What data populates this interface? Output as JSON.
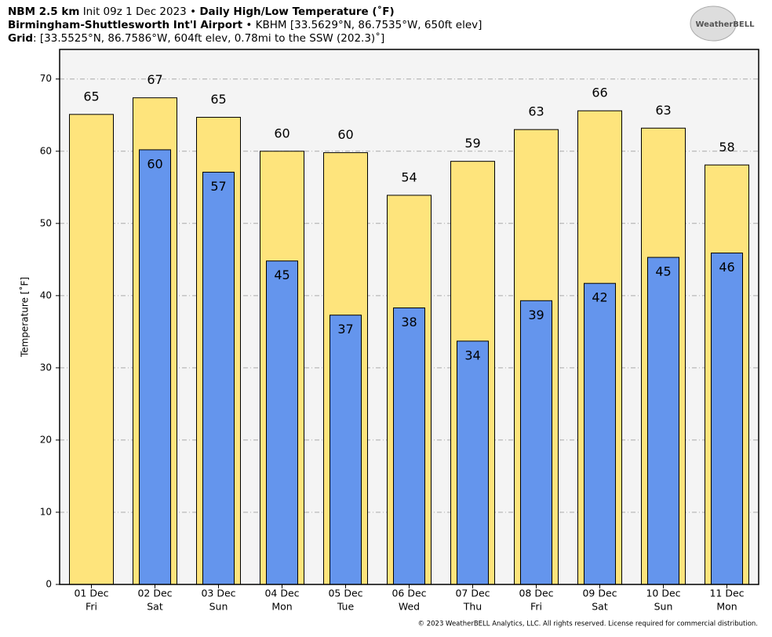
{
  "header": {
    "model": "NBM 2.5 km",
    "init": "Init 09z 1 Dec 2023",
    "product": "Daily High/Low Temperature (˚F)",
    "station": "Birmingham-Shuttlesworth Int'l Airport",
    "station_info": "KBHM [33.5629°N, 86.7535°W, 650ft elev]",
    "grid_label": "Grid",
    "grid_info": ": [33.5525°N, 86.7586°W, 604ft elev, 0.78mi to the SSW (202.3)˚]",
    "logo": "WeatherBELL"
  },
  "footer": "© 2023 WeatherBELL Analytics, LLC. All rights reserved. License required for commercial distribution.",
  "chart_data": {
    "type": "bar",
    "y_label": "Temperature [˚F]",
    "categories": [
      "01 Dec",
      "02 Dec",
      "03 Dec",
      "04 Dec",
      "05 Dec",
      "06 Dec",
      "07 Dec",
      "08 Dec",
      "09 Dec",
      "10 Dec",
      "11 Dec"
    ],
    "days": [
      "Fri",
      "Sat",
      "Sun",
      "Mon",
      "Tue",
      "Wed",
      "Thu",
      "Fri",
      "Sat",
      "Sun",
      "Mon"
    ],
    "series": [
      {
        "name": "High",
        "color": "#fee47c",
        "values": [
          65.1,
          67.4,
          64.7,
          60.0,
          59.8,
          53.9,
          58.6,
          63.0,
          65.6,
          63.2,
          58.1
        ],
        "value_labels": [
          "65",
          "67",
          "65",
          "60",
          "60",
          "54",
          "59",
          "63",
          "66",
          "63",
          "58"
        ]
      },
      {
        "name": "Low",
        "color": "#6495ed",
        "values": [
          null,
          60.2,
          57.1,
          44.8,
          37.3,
          38.3,
          33.7,
          39.3,
          41.7,
          45.3,
          45.9
        ],
        "value_labels": [
          null,
          "60",
          "57",
          "45",
          "37",
          "38",
          "34",
          "39",
          "42",
          "45",
          "46"
        ]
      }
    ],
    "ylim": [
      0,
      74.1
    ],
    "yticks": [
      0,
      10,
      20,
      30,
      40,
      50,
      60,
      70
    ],
    "grid": true
  }
}
